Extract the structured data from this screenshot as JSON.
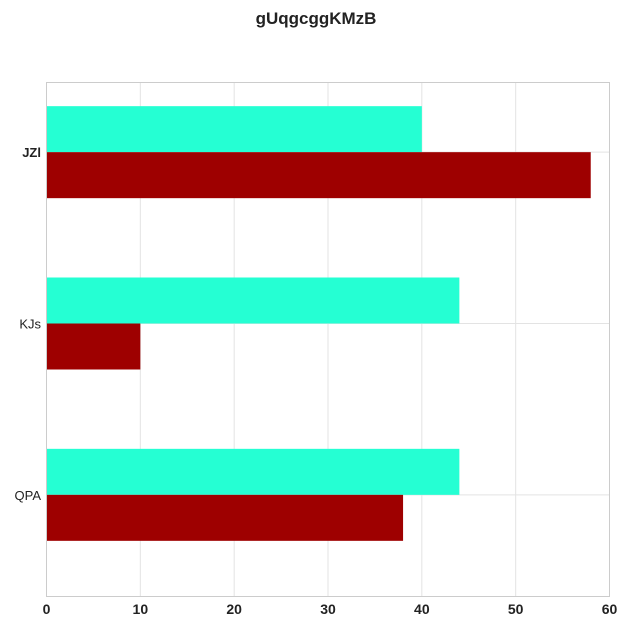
{
  "chart_data": {
    "type": "bar",
    "orientation": "horizontal",
    "title": "gUqgcggKMzB",
    "xlabel": "",
    "ylabel": "",
    "categories": [
      "JZl",
      "KJs",
      "QPA"
    ],
    "series": [
      {
        "color": "#25ffd3",
        "values": [
          40,
          44,
          44
        ]
      },
      {
        "color": "#9e0000",
        "values": [
          58,
          10,
          38
        ]
      }
    ],
    "xlim": [
      0,
      60
    ],
    "x_ticks": [
      "0",
      "10",
      "20",
      "30",
      "40",
      "50",
      "60"
    ],
    "grid": true,
    "legend": "none"
  }
}
